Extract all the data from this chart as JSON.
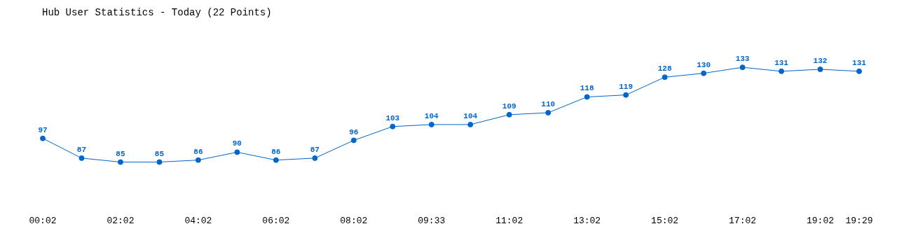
{
  "chart_data": {
    "type": "line",
    "title": "Hub User Statistics - Today (22 Points)",
    "categories": [
      "00:02",
      null,
      "02:02",
      null,
      "04:02",
      null,
      "06:02",
      null,
      "08:02",
      null,
      "09:33",
      null,
      "11:02",
      null,
      "13:02",
      null,
      "15:02",
      null,
      "17:02",
      null,
      "19:02",
      "19:29"
    ],
    "series": [
      {
        "color": "#0066cc",
        "values": [
          97,
          87,
          85,
          85,
          86,
          90,
          86,
          87,
          96,
          103,
          104,
          104,
          109,
          110,
          118,
          119,
          128,
          130,
          133,
          131,
          132,
          131
        ]
      }
    ],
    "data_labels": true,
    "marker": "circle",
    "grid": false,
    "tick_labels": "x"
  }
}
